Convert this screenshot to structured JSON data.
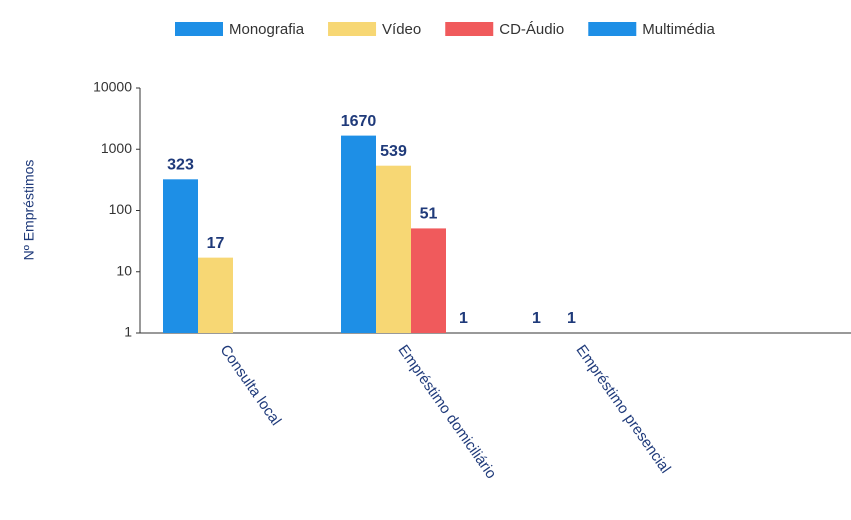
{
  "chart_data": {
    "type": "bar",
    "categories": [
      "Consulta local",
      "Empréstimo domiciliário",
      "Empréstimo presencial"
    ],
    "series": [
      {
        "name": "Monografia",
        "color": "#1e8fe6",
        "values": [
          323,
          1670,
          1
        ]
      },
      {
        "name": "Vídeo",
        "color": "#f7d774",
        "values": [
          17,
          539,
          1
        ]
      },
      {
        "name": "CD-Áudio",
        "color": "#f05a5c",
        "values": [
          null,
          51,
          null
        ]
      },
      {
        "name": "Multimédia",
        "color": "#1e8fe6",
        "values": [
          null,
          1,
          null
        ]
      }
    ],
    "ylabel": "Nº Empréstimos",
    "ylim": [
      1,
      10000
    ],
    "yticks": [
      1,
      10,
      100,
      1000,
      10000
    ],
    "log_scale": true,
    "legend": "top"
  }
}
